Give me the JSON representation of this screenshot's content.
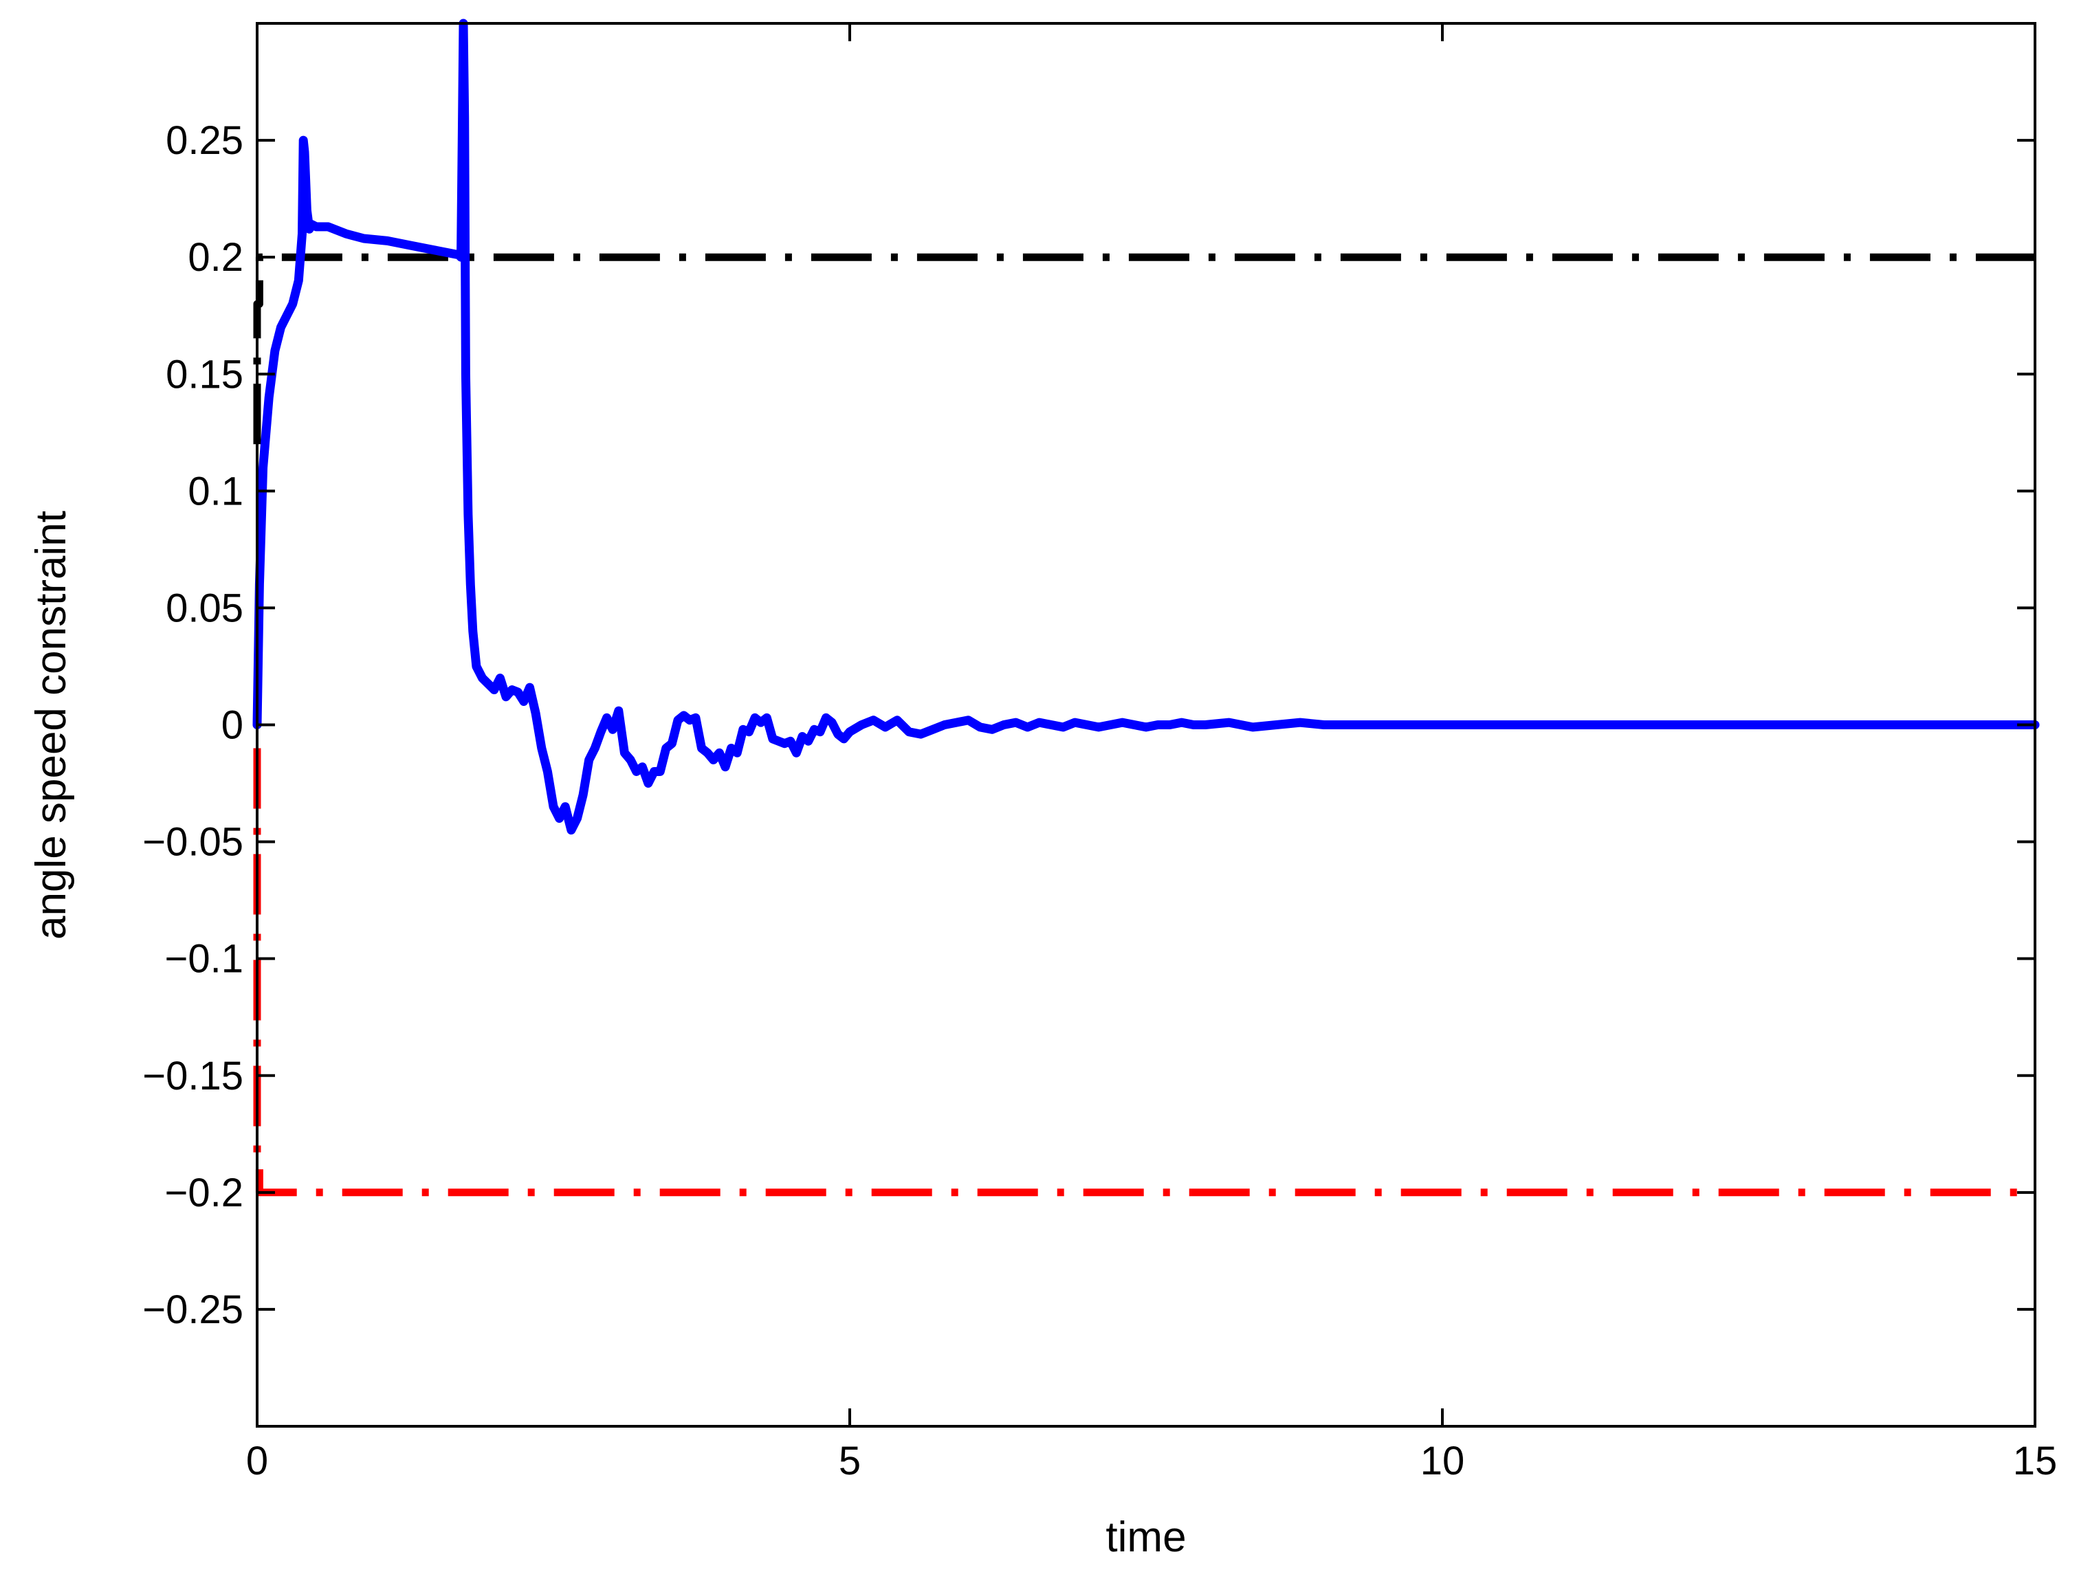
{
  "chart_data": {
    "type": "line",
    "title": "",
    "xlabel": "time",
    "ylabel": "angle speed constraint",
    "xlim": [
      0,
      15
    ],
    "ylim": [
      -0.3,
      0.3
    ],
    "xticks": [
      0,
      5,
      10,
      15
    ],
    "xtick_labels": [
      "0",
      "5",
      "10",
      "15"
    ],
    "yticks": [
      0.25,
      0.2,
      0.15,
      0.1,
      0.05,
      0,
      -0.05,
      -0.1,
      -0.15,
      -0.2,
      -0.25
    ],
    "ytick_labels": [
      "0.25",
      "0.2",
      "0.15",
      "0.1",
      "0.05",
      "0",
      "−0.05",
      "−0.1",
      "−0.15",
      "−0.2",
      "−0.25"
    ],
    "grid": false,
    "legend": "none",
    "series": [
      {
        "style": "solid",
        "color": "#0000ff",
        "x": [
          0,
          0.02,
          0.05,
          0.1,
          0.15,
          0.2,
          0.25,
          0.3,
          0.35,
          0.38,
          0.39,
          0.4,
          0.42,
          0.44,
          0.46,
          0.5,
          0.6,
          0.75,
          0.9,
          1.1,
          1.3,
          1.5,
          1.7,
          1.72,
          1.73,
          1.74,
          1.75,
          1.76,
          1.78,
          1.8,
          1.82,
          1.85,
          1.9,
          2.0,
          2.05,
          2.1,
          2.15,
          2.2,
          2.25,
          2.3,
          2.35,
          2.4,
          2.45,
          2.5,
          2.55,
          2.6,
          2.65,
          2.7,
          2.75,
          2.8,
          2.85,
          2.9,
          2.95,
          3.0,
          3.05,
          3.1,
          3.15,
          3.2,
          3.25,
          3.3,
          3.35,
          3.4,
          3.45,
          3.5,
          3.55,
          3.6,
          3.65,
          3.7,
          3.75,
          3.8,
          3.85,
          3.9,
          3.95,
          4.0,
          4.05,
          4.1,
          4.15,
          4.2,
          4.25,
          4.3,
          4.35,
          4.4,
          4.45,
          4.5,
          4.55,
          4.6,
          4.65,
          4.7,
          4.75,
          4.8,
          4.85,
          4.9,
          4.95,
          5.0,
          5.1,
          5.2,
          5.3,
          5.4,
          5.5,
          5.6,
          5.7,
          5.8,
          5.9,
          6.0,
          6.1,
          6.2,
          6.3,
          6.4,
          6.5,
          6.6,
          6.7,
          6.8,
          6.9,
          7.0,
          7.1,
          7.2,
          7.3,
          7.4,
          7.5,
          7.6,
          7.7,
          7.8,
          7.9,
          8.0,
          8.2,
          8.4,
          8.6,
          8.8,
          9.0,
          9.3,
          9.6,
          9.9,
          10.2,
          10.5,
          11.0,
          11.5,
          12.0,
          12.5,
          13.0,
          13.5,
          14.0,
          14.5,
          15.0
        ],
        "y": [
          0,
          0.06,
          0.11,
          0.14,
          0.16,
          0.17,
          0.175,
          0.18,
          0.19,
          0.21,
          0.25,
          0.245,
          0.22,
          0.212,
          0.214,
          0.213,
          0.213,
          0.21,
          0.208,
          0.207,
          0.205,
          0.203,
          0.201,
          0.2,
          0.25,
          0.3,
          0.26,
          0.15,
          0.09,
          0.06,
          0.04,
          0.025,
          0.02,
          0.015,
          0.02,
          0.012,
          0.015,
          0.014,
          0.01,
          0.016,
          0.005,
          -0.01,
          -0.02,
          -0.035,
          -0.04,
          -0.035,
          -0.045,
          -0.04,
          -0.03,
          -0.015,
          -0.01,
          -0.003,
          0.003,
          -0.002,
          0.006,
          -0.012,
          -0.015,
          -0.02,
          -0.018,
          -0.025,
          -0.02,
          -0.02,
          -0.01,
          -0.008,
          0.002,
          0.004,
          0.002,
          0.003,
          -0.01,
          -0.012,
          -0.015,
          -0.012,
          -0.018,
          -0.01,
          -0.012,
          -0.002,
          -0.003,
          0.003,
          0.001,
          0.003,
          -0.006,
          -0.007,
          -0.008,
          -0.007,
          -0.012,
          -0.005,
          -0.007,
          -0.002,
          -0.003,
          0.003,
          0.001,
          -0.004,
          -0.006,
          -0.003,
          0.0,
          0.002,
          -0.001,
          0.002,
          -0.003,
          -0.004,
          -0.002,
          0.0,
          0.001,
          0.002,
          -0.001,
          -0.002,
          0.0,
          0.001,
          -0.001,
          0.001,
          0.0,
          -0.001,
          0.001,
          0.0,
          -0.001,
          0.0,
          0.001,
          0.0,
          -0.001,
          0.0,
          0.0,
          0.001,
          0.0,
          0.0,
          0.001,
          -0.001,
          0.0,
          0.001,
          0.0,
          0.0,
          0.0,
          0.0,
          0.0,
          0.0,
          0.0,
          0.0,
          0.0,
          0.0,
          0.0,
          0.0,
          0.0,
          0.0,
          0.0
        ]
      },
      {
        "style": "dash-dot",
        "color": "#000000",
        "x": [
          0,
          0,
          0.02,
          0.02,
          15
        ],
        "y": [
          0.12,
          0.18,
          0.18,
          0.2,
          0.2
        ]
      },
      {
        "style": "dash-dot",
        "color": "#ff0000",
        "x": [
          0,
          0,
          0.02,
          0.02,
          15
        ],
        "y": [
          -0.01,
          -0.19,
          -0.19,
          -0.2,
          -0.2
        ]
      }
    ]
  }
}
